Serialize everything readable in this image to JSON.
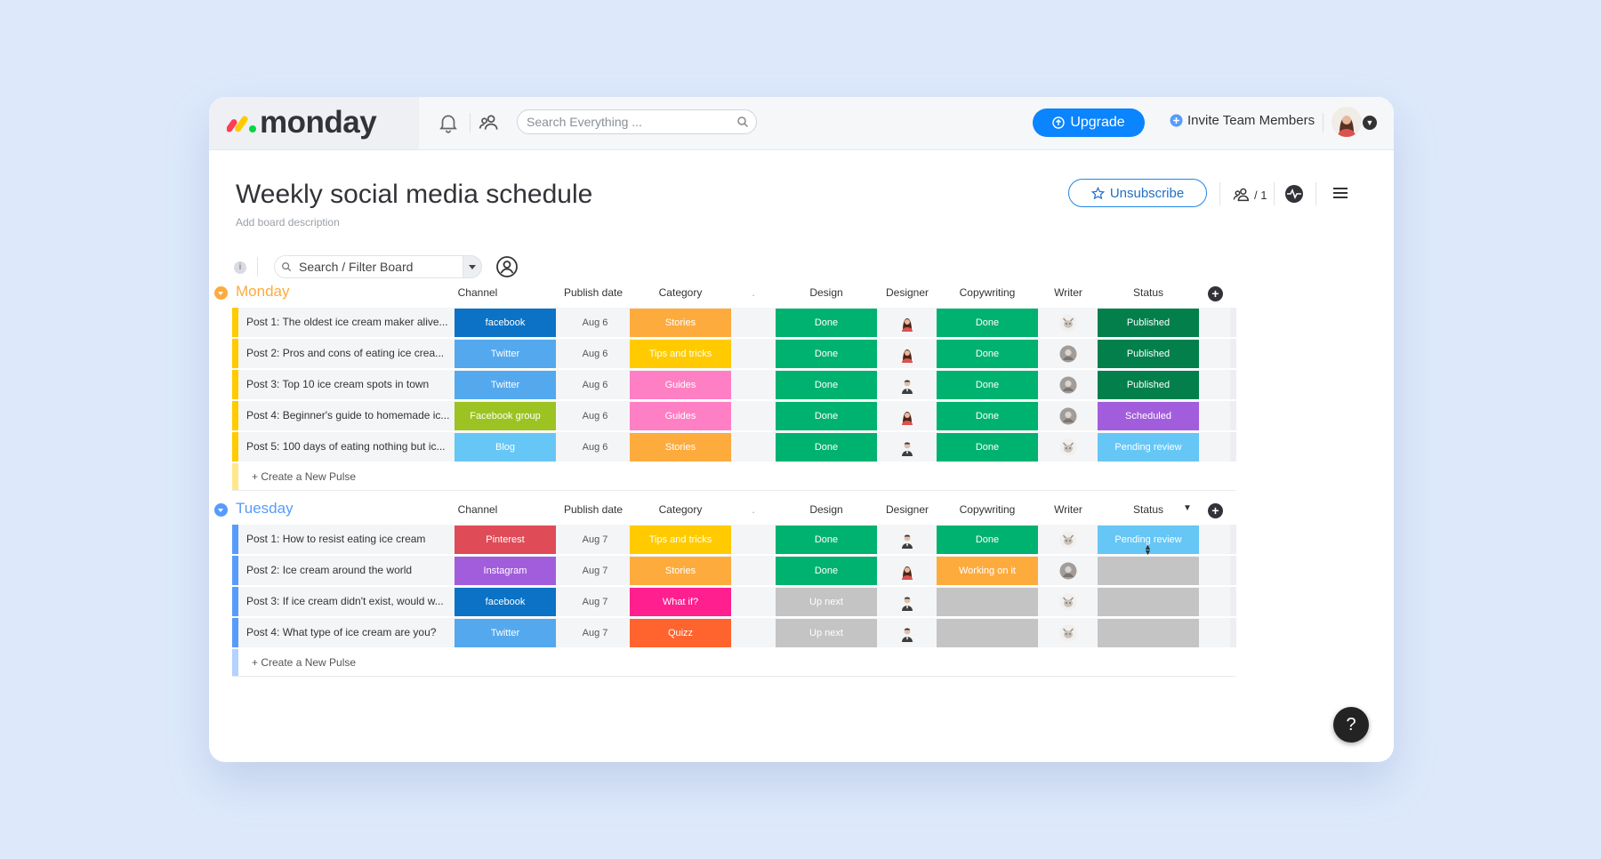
{
  "topbar": {
    "logo_text": "monday",
    "search_placeholder": "Search Everything ...",
    "upgrade_label": "Upgrade",
    "invite_label": "Invite Team Members",
    "icons": [
      "bell-icon",
      "people-icon",
      "search-icon",
      "plus-circle-icon",
      "avatar"
    ]
  },
  "board": {
    "title": "Weekly social media schedule",
    "description_placeholder": "Add board description",
    "unsubscribe_label": "Unsubscribe",
    "members_count": "/ 1",
    "filter_placeholder": "Search / Filter Board"
  },
  "columns": {
    "channel": "Channel",
    "publish_date": "Publish date",
    "category": "Category",
    "unnamed": ".",
    "design": "Design",
    "designer": "Designer",
    "copywriting": "Copywriting",
    "writer": "Writer",
    "status": "Status"
  },
  "colors": {
    "facebook": "#0b72c5",
    "Twitter": "#54a8ee",
    "Facebook group": "#9cc321",
    "Blog": "#66c6f5",
    "Pinterest": "#e04b58",
    "Instagram": "#a25ddc",
    "Stories": "#fdab3d",
    "Tips and tricks": "#ffcb00",
    "Guides": "#ff7fc4",
    "What if?": "#ff1f8e",
    "Quizz": "#ff642e",
    "Done": "#00b26f",
    "Up next": "#c4c4c4",
    "Working on it": "#fdab3d",
    "": "#c4c4c4",
    "Published": "#037f4c",
    "Scheduled": "#a25ddc",
    "Pending review": "#66c6f5",
    "monday_group": "#ffcb00",
    "tuesday_group": "#579bfc"
  },
  "groups": [
    {
      "name": "Monday",
      "color": "#fdab3d",
      "create_label": "+ Create a New Pulse",
      "rows": [
        {
          "name": "Post 1: The oldest ice cream maker alive...",
          "channel": "facebook",
          "date": "Aug 6",
          "category": "Stories",
          "design": "Done",
          "designer": "woman",
          "copywriting": "Done",
          "writer": "cat",
          "status": "Published"
        },
        {
          "name": "Post 2: Pros and cons of eating ice crea...",
          "channel": "Twitter",
          "date": "Aug 6",
          "category": "Tips and tricks",
          "design": "Done",
          "designer": "woman",
          "copywriting": "Done",
          "writer": "grey",
          "status": "Published"
        },
        {
          "name": "Post 3: Top 10 ice cream spots in town",
          "channel": "Twitter",
          "date": "Aug 6",
          "category": "Guides",
          "design": "Done",
          "designer": "man",
          "copywriting": "Done",
          "writer": "grey",
          "status": "Published"
        },
        {
          "name": "Post 4: Beginner's guide to homemade ic...",
          "channel": "Facebook group",
          "date": "Aug 6",
          "category": "Guides",
          "design": "Done",
          "designer": "woman",
          "copywriting": "Done",
          "writer": "grey",
          "status": "Scheduled"
        },
        {
          "name": "Post 5: 100 days of eating nothing but ic...",
          "channel": "Blog",
          "date": "Aug 6",
          "category": "Stories",
          "design": "Done",
          "designer": "man",
          "copywriting": "Done",
          "writer": "cat",
          "status": "Pending review"
        }
      ]
    },
    {
      "name": "Tuesday",
      "color": "#579bfc",
      "create_label": "+ Create a New Pulse",
      "rows": [
        {
          "name": "Post 1: How to resist eating ice cream",
          "channel": "Pinterest",
          "date": "Aug 7",
          "category": "Tips and tricks",
          "design": "Done",
          "designer": "man",
          "copywriting": "Done",
          "writer": "cat",
          "status": "Pending review"
        },
        {
          "name": "Post 2: Ice cream around the world",
          "channel": "Instagram",
          "date": "Aug 7",
          "category": "Stories",
          "design": "Done",
          "designer": "woman",
          "copywriting": "Working on it",
          "writer": "grey",
          "status": ""
        },
        {
          "name": "Post 3: If ice cream didn't exist, would w...",
          "channel": "facebook",
          "date": "Aug 7",
          "category": "What if?",
          "design": "Up next",
          "designer": "man",
          "copywriting": "",
          "writer": "cat",
          "status": ""
        },
        {
          "name": "Post 4: What type of ice cream are you?",
          "channel": "Twitter",
          "date": "Aug 7",
          "category": "Quizz",
          "design": "Up next",
          "designer": "man",
          "copywriting": "",
          "writer": "cat",
          "status": ""
        }
      ]
    }
  ],
  "help_label": "?"
}
